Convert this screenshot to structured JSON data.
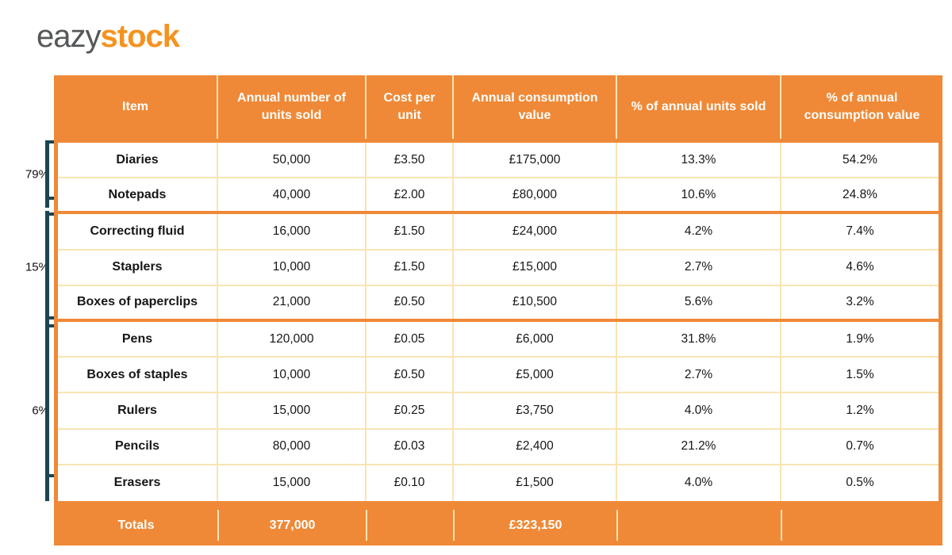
{
  "brand": {
    "logo_prefix": "eazy",
    "logo_suffix": "stock"
  },
  "colors": {
    "table_orange": "#EF8937",
    "grid_cream": "#F9E4B2",
    "bracket_teal": "#1B4552",
    "logo_gray": "#555759",
    "logo_orange": "#F6921E"
  },
  "chart_data": {
    "type": "table",
    "columns": [
      "Item",
      "Annual number of units sold",
      "Cost per unit",
      "Annual consumption value",
      "% of annual units sold",
      "% of annual consumption value"
    ],
    "rows": [
      {
        "group": "A",
        "cells": [
          "Diaries",
          "50,000",
          "£3.50",
          "£175,000",
          "13.3%",
          "54.2%"
        ]
      },
      {
        "group": "A",
        "cells": [
          "Notepads",
          "40,000",
          "£2.00",
          "£80,000",
          "10.6%",
          "24.8%"
        ]
      },
      {
        "group": "B",
        "cells": [
          "Correcting fluid",
          "16,000",
          "£1.50",
          "£24,000",
          "4.2%",
          "7.4%"
        ]
      },
      {
        "group": "B",
        "cells": [
          "Staplers",
          "10,000",
          "£1.50",
          "£15,000",
          "2.7%",
          "4.6%"
        ]
      },
      {
        "group": "B",
        "cells": [
          "Boxes of paperclips",
          "21,000",
          "£0.50",
          "£10,500",
          "5.6%",
          "3.2%"
        ]
      },
      {
        "group": "C",
        "cells": [
          "Pens",
          "120,000",
          "£0.05",
          "£6,000",
          "31.8%",
          "1.9%"
        ]
      },
      {
        "group": "C",
        "cells": [
          "Boxes of staples",
          "10,000",
          "£0.50",
          "£5,000",
          "2.7%",
          "1.5%"
        ]
      },
      {
        "group": "C",
        "cells": [
          "Rulers",
          "15,000",
          "£0.25",
          "£3,750",
          "4.0%",
          "1.2%"
        ]
      },
      {
        "group": "C",
        "cells": [
          "Pencils",
          "80,000",
          "£0.03",
          "£2,400",
          "21.2%",
          "0.7%"
        ]
      },
      {
        "group": "C",
        "cells": [
          "Erasers",
          "15,000",
          "£0.10",
          "£1,500",
          "4.0%",
          "0.5%"
        ]
      }
    ],
    "totals": [
      "Totals",
      "377,000",
      "",
      "£323,150",
      "",
      ""
    ],
    "group_annotations": [
      {
        "label": "79%",
        "rows": [
          "Diaries",
          "Notepads"
        ]
      },
      {
        "label": "15%",
        "rows": [
          "Correcting fluid",
          "Staplers",
          "Boxes of paperclips"
        ]
      },
      {
        "label": "6%",
        "rows": [
          "Pens",
          "Boxes of staples",
          "Rulers",
          "Pencils",
          "Erasers"
        ]
      }
    ],
    "layout_hints": {
      "grid": "cream inner gridlines",
      "group_separator": "thick orange line",
      "legend_position": "none"
    }
  }
}
